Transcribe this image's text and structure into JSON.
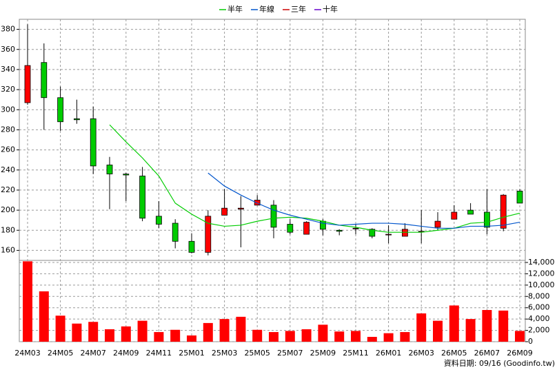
{
  "chart_data": {
    "type": "candlestick",
    "categories": [
      "24M03",
      null,
      "24M05",
      null,
      "24M07",
      null,
      "24M09",
      null,
      "24M11",
      null,
      "25M01",
      null,
      "25M03",
      null,
      "25M05",
      null,
      "25M07",
      null,
      "25M09",
      null,
      "25M11",
      null,
      "26M01",
      null,
      "26M03",
      null,
      "26M05",
      null,
      "26M07",
      null,
      "26M09"
    ],
    "open": [
      307,
      347,
      312,
      291,
      291,
      245,
      236,
      234,
      194,
      187,
      169,
      158,
      195,
      201,
      205,
      205,
      186,
      176,
      189,
      180,
      182,
      181,
      176,
      174,
      179,
      183,
      191,
      200,
      198,
      182,
      219
    ],
    "high": [
      385,
      366,
      323,
      310,
      303,
      253,
      237,
      243,
      209,
      191,
      177,
      200,
      221,
      214,
      215,
      210,
      191,
      189,
      191,
      181,
      186,
      182,
      185,
      187,
      200,
      198,
      205,
      207,
      221,
      216,
      221
    ],
    "low": [
      305,
      280,
      279,
      286,
      236,
      201,
      209,
      189,
      182,
      162,
      157,
      155,
      195,
      163,
      205,
      172,
      176,
      176,
      175,
      175,
      176,
      172,
      167,
      174,
      167,
      180,
      191,
      196,
      176,
      179,
      207
    ],
    "close": [
      344,
      312,
      288,
      290,
      244,
      236,
      235,
      192,
      186,
      169,
      158,
      194,
      202,
      202,
      210,
      183,
      178,
      188,
      181,
      179,
      182,
      174,
      176,
      181,
      179,
      189,
      198,
      196,
      183,
      215,
      207
    ],
    "up_color": "#ff0000",
    "down_color": "#00cc00",
    "ylim": [
      150,
      390
    ],
    "yticks": [
      160,
      180,
      200,
      220,
      240,
      260,
      280,
      300,
      320,
      340,
      360,
      380
    ],
    "grid": true,
    "series": [
      {
        "name": "半年",
        "color": "#00cc00",
        "values": [
          null,
          null,
          null,
          null,
          null,
          285,
          268,
          252,
          234,
          207,
          196,
          187,
          184,
          185,
          189,
          192,
          193,
          192,
          189,
          185,
          183,
          180,
          178,
          178,
          178,
          180,
          182,
          187,
          188,
          193,
          197
        ]
      },
      {
        "name": "年線",
        "color": "#0055cc",
        "values": [
          null,
          null,
          null,
          null,
          null,
          null,
          null,
          null,
          null,
          null,
          null,
          237,
          224,
          215,
          207,
          200,
          195,
          191,
          187,
          185,
          186,
          187,
          187,
          186,
          184,
          182,
          182,
          184,
          184,
          185,
          188
        ]
      },
      {
        "name": "三年",
        "color": "#cc0000",
        "values": [
          null,
          null,
          null,
          null,
          null,
          null,
          null,
          null,
          null,
          null,
          null,
          null,
          null,
          null,
          null,
          null,
          null,
          null,
          null,
          null,
          null,
          null,
          null,
          null,
          null,
          null,
          null,
          null,
          null,
          null,
          null
        ]
      },
      {
        "name": "十年",
        "color": "#6600cc",
        "values": [
          null,
          null,
          null,
          null,
          null,
          null,
          null,
          null,
          null,
          null,
          null,
          null,
          null,
          null,
          null,
          null,
          null,
          null,
          null,
          null,
          null,
          null,
          null,
          null,
          null,
          null,
          null,
          null,
          null,
          null,
          null
        ]
      }
    ],
    "volume": {
      "type": "bar",
      "color": "#ff0000",
      "values": [
        14200,
        8900,
        4600,
        3200,
        3500,
        2200,
        2700,
        3700,
        1700,
        2100,
        1100,
        3300,
        4000,
        4400,
        2100,
        1700,
        1900,
        2200,
        3000,
        1800,
        1900,
        850,
        1500,
        1700,
        5000,
        3700,
        6400,
        4000,
        5600,
        5500,
        1900
      ],
      "ylim": [
        0,
        14000
      ],
      "yticks": [
        0,
        {
          "value": 2000,
          "label": "2,000"
        },
        {
          "value": 4000,
          "label": "4,000"
        },
        {
          "value": 6000,
          "label": "6,000"
        },
        {
          "value": 8000,
          "label": "8,000"
        },
        {
          "value": 10000,
          "label": "10,000"
        },
        {
          "value": 12000,
          "label": "12,000"
        },
        {
          "value": 14000,
          "label": "14,000"
        }
      ]
    },
    "footer": "資料日期: 09/16 (Goodinfo.tw)"
  }
}
